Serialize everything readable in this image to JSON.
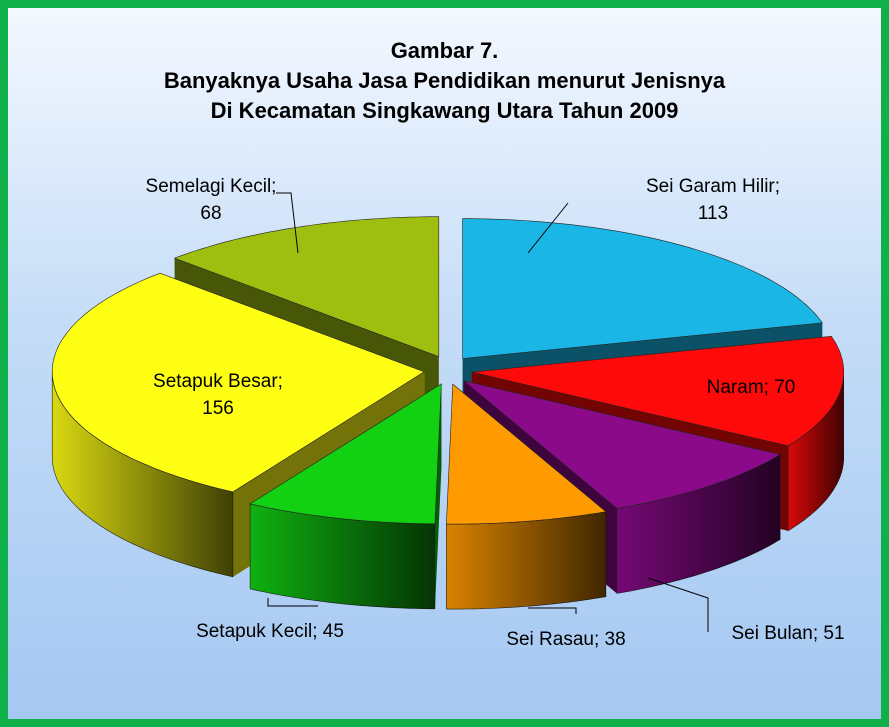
{
  "chart_data": {
    "type": "pie3d",
    "title": [
      "Gambar 7.",
      "Banyaknya Usaha Jasa Pendidikan menurut Jenisnya",
      "Di Kecamatan Singkawang Utara Tahun 2009"
    ],
    "values": [
      113,
      70,
      51,
      38,
      45,
      156,
      68
    ],
    "value_labels": [
      "Sei Garam Hilir; 113",
      "Naram; 70",
      "Sei Bulan; 51",
      "Sei Rasau; 38",
      "Setapuk Kecil; 45",
      "Setapuk Besar; 156",
      "Semelagi Kecil; 68"
    ],
    "colors": [
      "#19b6e6",
      "#ff0a0a",
      "#8a0a8a",
      "#ff9a00",
      "#12d012",
      "#ffff14",
      "#9fbf10"
    ]
  }
}
